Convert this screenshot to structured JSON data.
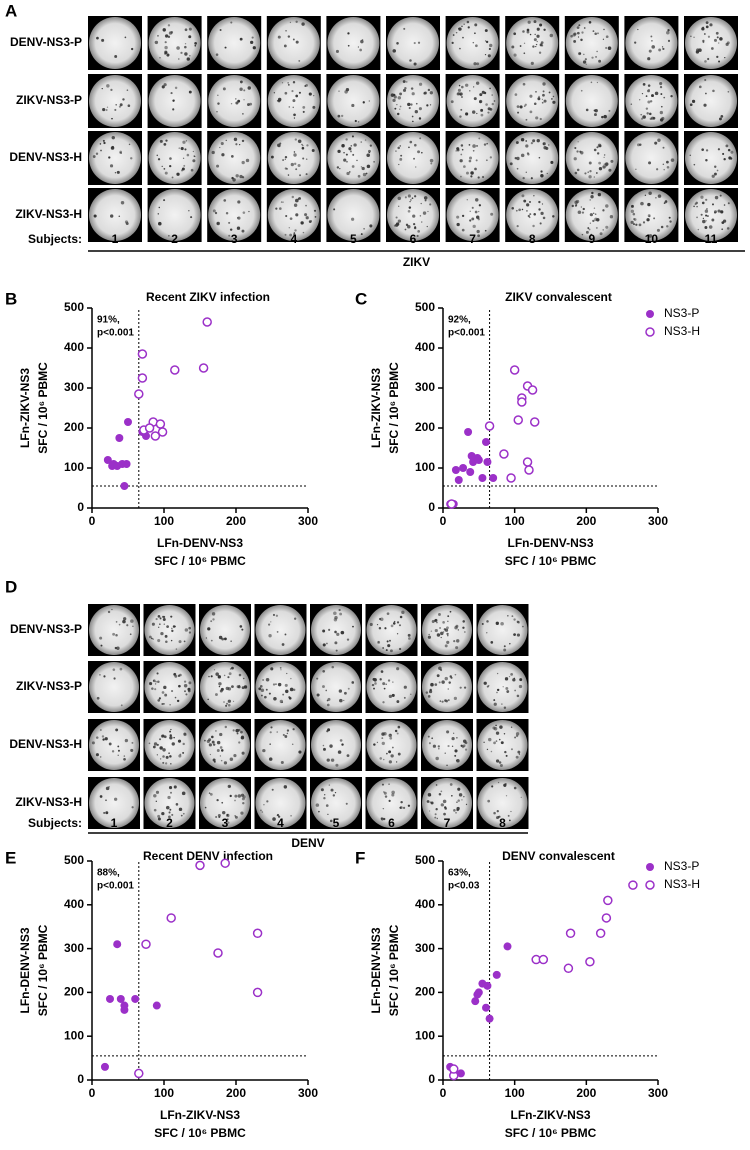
{
  "well_grids": [
    {
      "panel": "A",
      "rows": [
        "DENV-NS3-P",
        "ZIKV-NS3-P",
        "DENV-NS3-H",
        "ZIKV-NS3-H"
      ],
      "subjects_label": "Subjects:",
      "subjects": [
        "1",
        "2",
        "3",
        "4",
        "5",
        "6",
        "7",
        "8",
        "9",
        "10",
        "11"
      ],
      "group": "ZIKV"
    },
    {
      "panel": "D",
      "rows": [
        "DENV-NS3-P",
        "ZIKV-NS3-P",
        "DENV-NS3-H",
        "ZIKV-NS3-H"
      ],
      "subjects_label": "Subjects:",
      "subjects": [
        "1",
        "2",
        "3",
        "4",
        "5",
        "6",
        "7",
        "8"
      ],
      "group": "DENV"
    }
  ],
  "chart_data": [
    {
      "type": "scatter",
      "panel": "B",
      "title": "Recent ZIKV infection",
      "xlabel": [
        "LFn-DENV-NS3",
        "SFC / 10⁶ PBMC"
      ],
      "ylabel": [
        "LFn-ZIKV-NS3",
        "SFC / 10⁶ PBMC"
      ],
      "annotation": [
        "91%,",
        "p<0.001"
      ],
      "xlim": [
        0,
        300
      ],
      "ylim": [
        0,
        500
      ],
      "xticks": [
        0,
        100,
        200,
        300
      ],
      "yticks": [
        0,
        100,
        200,
        300,
        400,
        500
      ],
      "cutoff_x": 65,
      "cutoff_y": 55,
      "series": [
        {
          "color": "#9b30c8",
          "marker": "filled",
          "x": [
            22,
            28,
            30,
            35,
            38,
            42,
            45,
            50,
            48,
            70,
            75
          ],
          "values": [
            120,
            105,
            110,
            105,
            175,
            110,
            55,
            215,
            110,
            190,
            180
          ]
        },
        {
          "color": "#9b30c8",
          "marker": "open",
          "x": [
            65,
            70,
            70,
            72,
            85,
            88,
            95,
            98,
            115,
            155,
            160,
            80
          ],
          "values": [
            285,
            385,
            325,
            195,
            215,
            180,
            210,
            190,
            345,
            350,
            465,
            200
          ]
        }
      ]
    },
    {
      "type": "scatter",
      "panel": "C",
      "title": "ZIKV convalescent",
      "xlabel": [
        "LFn-DENV-NS3",
        "SFC / 10⁶ PBMC"
      ],
      "ylabel": [
        "LFn-ZIKV-NS3",
        "SFC / 10⁶ PBMC"
      ],
      "annotation": [
        "92%,",
        "p<0.001"
      ],
      "xlim": [
        0,
        300
      ],
      "ylim": [
        0,
        500
      ],
      "xticks": [
        0,
        100,
        200,
        300
      ],
      "yticks": [
        0,
        100,
        200,
        300,
        400,
        500
      ],
      "cutoff_x": 65,
      "cutoff_y": 55,
      "legend": "right",
      "series": [
        {
          "name": "NS3-P",
          "color": "#9b30c8",
          "marker": "filled",
          "x": [
            10,
            15,
            18,
            22,
            28,
            35,
            38,
            42,
            48,
            50,
            55,
            60,
            62,
            70,
            40
          ],
          "values": [
            10,
            10,
            95,
            70,
            100,
            190,
            90,
            115,
            125,
            120,
            75,
            165,
            115,
            75,
            130
          ]
        },
        {
          "name": "NS3-H",
          "color": "#9b30c8",
          "marker": "open",
          "x": [
            12,
            65,
            85,
            95,
            100,
            105,
            110,
            110,
            118,
            118,
            120,
            125,
            128
          ],
          "values": [
            10,
            205,
            135,
            75,
            345,
            220,
            275,
            265,
            305,
            115,
            95,
            295,
            215
          ]
        }
      ]
    },
    {
      "type": "scatter",
      "panel": "E",
      "title": "Recent DENV infection",
      "xlabel": [
        "LFn-ZIKV-NS3",
        "SFC / 10⁶ PBMC"
      ],
      "ylabel": [
        "LFn-DENV-NS3",
        "SFC / 10⁶ PBMC"
      ],
      "annotation": [
        "88%,",
        "p<0.001"
      ],
      "xlim": [
        0,
        300
      ],
      "ylim": [
        0,
        500
      ],
      "xticks": [
        0,
        100,
        200,
        300
      ],
      "yticks": [
        0,
        100,
        200,
        300,
        400,
        500
      ],
      "cutoff_x": 65,
      "cutoff_y": 55,
      "series": [
        {
          "color": "#9b30c8",
          "marker": "filled",
          "x": [
            18,
            25,
            35,
            40,
            45,
            45,
            60,
            90
          ],
          "values": [
            30,
            185,
            310,
            185,
            160,
            170,
            185,
            170
          ]
        },
        {
          "color": "#9b30c8",
          "marker": "open",
          "x": [
            65,
            75,
            110,
            150,
            175,
            185,
            230,
            230
          ],
          "values": [
            15,
            310,
            370,
            490,
            290,
            495,
            335,
            200
          ]
        }
      ]
    },
    {
      "type": "scatter",
      "panel": "F",
      "title": "DENV convalescent",
      "xlabel": [
        "LFn-ZIKV-NS3",
        "SFC / 10⁶ PBMC"
      ],
      "ylabel": [
        "LFn-DENV-NS3",
        "SFC / 10⁶ PBMC"
      ],
      "annotation": [
        "63%,",
        "p<0.03"
      ],
      "xlim": [
        0,
        300
      ],
      "ylim": [
        0,
        500
      ],
      "xticks": [
        0,
        100,
        200,
        300
      ],
      "yticks": [
        0,
        100,
        200,
        300,
        400,
        500
      ],
      "cutoff_x": 65,
      "cutoff_y": 55,
      "legend": "right",
      "series": [
        {
          "name": "NS3-P",
          "color": "#9b30c8",
          "marker": "filled",
          "x": [
            10,
            15,
            25,
            45,
            48,
            50,
            55,
            60,
            62,
            65,
            75,
            90
          ],
          "values": [
            30,
            20,
            15,
            180,
            195,
            200,
            220,
            165,
            215,
            140,
            240,
            305
          ]
        },
        {
          "name": "NS3-H",
          "color": "#9b30c8",
          "marker": "open",
          "x": [
            15,
            15,
            130,
            140,
            175,
            178,
            205,
            220,
            228,
            230,
            265
          ],
          "values": [
            10,
            25,
            275,
            275,
            255,
            335,
            270,
            335,
            370,
            410,
            445
          ]
        }
      ]
    }
  ]
}
